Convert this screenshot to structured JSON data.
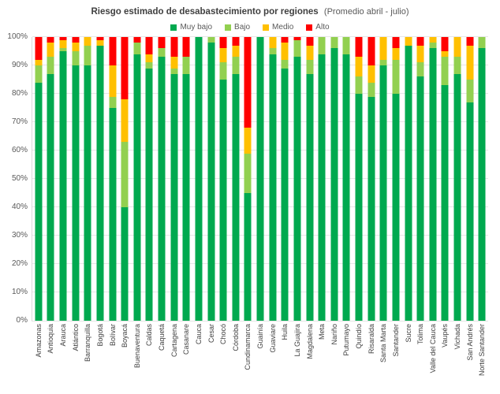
{
  "title": {
    "main": "Riesgo estimado de desabastecimiento por regiones",
    "suffix": "(Promedio abril - julio)"
  },
  "colors": {
    "muy_bajo": "#00a94f",
    "bajo": "#92d050",
    "medio": "#ffc000",
    "alto": "#ff0000",
    "grid": "#e6e6e6",
    "axis_text": "#595959",
    "label_text": "#404040"
  },
  "chart_data": {
    "type": "bar",
    "stacked": true,
    "stacked_total": 100,
    "title": "Riesgo estimado de desabastecimiento por regiones (Promedio abril - julio)",
    "xlabel": "",
    "ylabel": "",
    "ylim": [
      0,
      100
    ],
    "grid": true,
    "legend_position": "top",
    "y_ticks": [
      "0%",
      "10%",
      "20%",
      "30%",
      "40%",
      "50%",
      "60%",
      "70%",
      "80%",
      "90%",
      "100%"
    ],
    "categories": [
      "Amazonas",
      "Antioquia",
      "Arauca",
      "Atlántico",
      "Barranquilla",
      "Bogotá",
      "Bolívar",
      "Boyacá",
      "Buenaventura",
      "Caldas",
      "Caquetá",
      "Cartagena",
      "Casanare",
      "Cauca",
      "Cesar",
      "Chocó",
      "Córdoba",
      "Cundinamarca",
      "Guainía",
      "Guaviare",
      "Huila",
      "La Guajira",
      "Magdalena",
      "Meta",
      "Nariño",
      "Putumayo",
      "Quindío",
      "Risaralda",
      "Santa Marta",
      "Santander",
      "Sucre",
      "Tolima",
      "Valle del Cauca",
      "Vaupés",
      "Vichada",
      "San Andrés",
      "Norte Santander"
    ],
    "series": [
      {
        "name": "Muy bajo",
        "color": "#00a94f",
        "values": [
          84,
          87,
          95,
          90,
          90,
          97,
          75,
          40,
          94,
          89,
          93,
          87,
          87,
          100,
          98,
          85,
          87,
          45,
          100,
          94,
          89,
          93,
          87,
          94,
          96,
          94,
          80,
          79,
          90,
          80,
          97,
          86,
          96,
          83,
          87,
          77,
          96
        ]
      },
      {
        "name": "Bajo",
        "color": "#92d050",
        "values": [
          6,
          6,
          1,
          5,
          7,
          0,
          4,
          23,
          4,
          2,
          3,
          2,
          6,
          0,
          2,
          6,
          6,
          14,
          0,
          2,
          3,
          6,
          5,
          6,
          4,
          6,
          6,
          5,
          2,
          12,
          0,
          5,
          2,
          10,
          6,
          8,
          4
        ]
      },
      {
        "name": "Medio",
        "color": "#ffc000",
        "values": [
          2,
          5,
          3,
          3,
          3,
          2,
          11,
          15,
          0,
          3,
          0,
          4,
          0,
          0,
          0,
          5,
          4,
          9,
          0,
          4,
          6,
          0,
          5,
          0,
          0,
          0,
          7,
          6,
          8,
          4,
          3,
          6,
          2,
          2,
          7,
          12,
          0
        ]
      },
      {
        "name": "Alto",
        "color": "#ff0000",
        "values": [
          8,
          2,
          1,
          2,
          0,
          1,
          10,
          22,
          2,
          6,
          4,
          7,
          7,
          0,
          0,
          4,
          3,
          32,
          0,
          0,
          2,
          1,
          3,
          0,
          0,
          0,
          7,
          10,
          0,
          4,
          0,
          3,
          0,
          5,
          0,
          3,
          0
        ]
      }
    ]
  }
}
